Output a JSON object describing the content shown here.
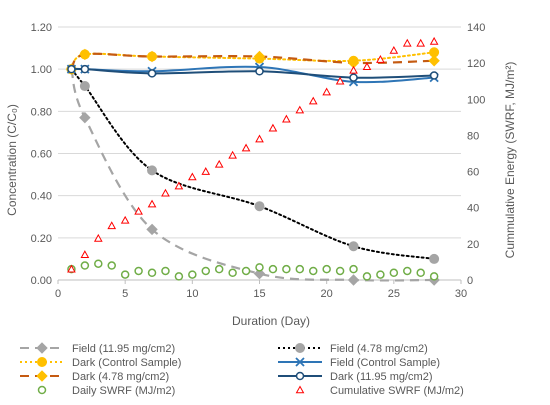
{
  "chart_data": {
    "type": "line",
    "xlabel": "Duration (Day)",
    "ylabel": "Concentration (C/C₀)",
    "y2label": "Cummulative Energy (SWRF, MJ/m²)",
    "xlim": [
      0,
      30
    ],
    "ylim": [
      0,
      1.2
    ],
    "y2lim": [
      0,
      140
    ],
    "xticks": [
      "0",
      "5",
      "10",
      "15",
      "20",
      "25",
      "30"
    ],
    "yticks": [
      "0.00",
      "0.20",
      "0.40",
      "0.60",
      "0.80",
      "1.00",
      "1.20"
    ],
    "y2ticks": [
      "0",
      "20",
      "40",
      "60",
      "80",
      "100",
      "120",
      "140"
    ],
    "grid": true,
    "legend_position": "bottom",
    "series": [
      {
        "name": "Field (11.95 mg/cm2)",
        "axis": "left",
        "color": "#a5a5a5",
        "line": "dash",
        "marker": "diamond",
        "x": [
          1,
          2,
          7,
          15,
          22,
          28
        ],
        "y": [
          1.0,
          0.77,
          0.24,
          0.03,
          0.0,
          0.0
        ]
      },
      {
        "name": "Field (4.78 mg/cm2)",
        "axis": "left",
        "color": "#000000",
        "line": "dot",
        "marker": "circle",
        "markerColor": "#a5a5a5",
        "x": [
          1,
          2,
          7,
          15,
          22,
          28
        ],
        "y": [
          1.0,
          0.92,
          0.52,
          0.35,
          0.16,
          0.1
        ]
      },
      {
        "name": "Dark (Control Sample)",
        "axis": "left",
        "color": "#ffc000",
        "line": "dot",
        "marker": "circle",
        "x": [
          1,
          2,
          7,
          15,
          22,
          28
        ],
        "y": [
          1.0,
          1.07,
          1.06,
          1.05,
          1.04,
          1.08
        ]
      },
      {
        "name": "Field (Control Sample)",
        "axis": "left",
        "color": "#2e75b6",
        "line": "solid",
        "marker": "x",
        "x": [
          1,
          2,
          7,
          15,
          22,
          28
        ],
        "y": [
          1.0,
          1.0,
          0.99,
          1.01,
          0.94,
          0.96
        ]
      },
      {
        "name": "Dark (4.78 mg/cm2)",
        "axis": "left",
        "color": "#c55a11",
        "line": "dash",
        "marker": "diamond",
        "markerColor": "#ffc000",
        "x": [
          1,
          2,
          7,
          15,
          22,
          28
        ],
        "y": [
          1.0,
          1.07,
          1.06,
          1.06,
          1.03,
          1.04
        ]
      },
      {
        "name": "Dark (11.95 mg/cm2)",
        "axis": "left",
        "color": "#1f4e79",
        "line": "solid",
        "marker": "circle-open",
        "x": [
          1,
          2,
          7,
          15,
          22,
          28
        ],
        "y": [
          1.0,
          1.0,
          0.98,
          0.99,
          0.96,
          0.97
        ]
      },
      {
        "name": "Daily SWRF (MJ/m2)",
        "axis": "right",
        "color": "#70ad47",
        "line": "none",
        "marker": "circle-open",
        "x": [
          1,
          2,
          3,
          4,
          5,
          6,
          7,
          8,
          9,
          10,
          11,
          12,
          13,
          14,
          15,
          16,
          17,
          18,
          19,
          20,
          21,
          22,
          23,
          24,
          25,
          26,
          27,
          28
        ],
        "y": [
          6,
          8,
          9,
          8,
          3,
          5,
          4,
          5,
          2,
          3,
          5,
          6,
          4,
          5,
          7,
          6,
          6,
          6,
          5,
          6,
          5,
          6,
          2,
          3,
          4,
          5,
          4,
          2
        ]
      },
      {
        "name": "Cumulative SWRF (MJ/m2)",
        "axis": "right",
        "color": "#ff0000",
        "line": "none",
        "marker": "triangle-open",
        "x": [
          1,
          2,
          3,
          4,
          5,
          6,
          7,
          8,
          9,
          10,
          11,
          12,
          13,
          14,
          15,
          16,
          17,
          18,
          19,
          20,
          21,
          22,
          23,
          24,
          25,
          26,
          27,
          28
        ],
        "y": [
          6,
          14,
          23,
          30,
          33,
          38,
          42,
          48,
          52,
          57,
          60,
          64,
          69,
          73,
          78,
          84,
          89,
          94,
          99,
          104,
          110,
          116,
          118,
          122,
          127,
          131,
          131,
          132
        ]
      }
    ]
  }
}
